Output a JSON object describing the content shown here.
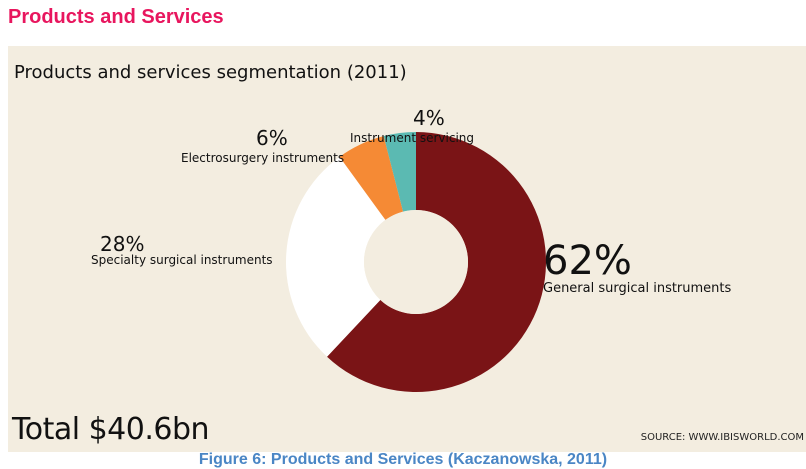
{
  "heading": "Products and Services",
  "panel": {
    "title": "Products and services segmentation",
    "year": "(2011)",
    "total": "Total $40.6bn",
    "source": "SOURCE: WWW.IBISWORLD.COM"
  },
  "caption": "Figure 6: Products and Services (Kaczanowska, 2011)",
  "chart_data": {
    "type": "pie",
    "title": "Products and services segmentation (2011)",
    "slices": [
      {
        "label": "General surgical instruments",
        "value": 62,
        "display": "62%",
        "color": "#7a1416"
      },
      {
        "label": "Specialty surgical instruments",
        "value": 28,
        "display": "28%",
        "color": "#ffffff"
      },
      {
        "label": "Electrosurgery instruments",
        "value": 6,
        "display": "6%",
        "color": "#f58a35"
      },
      {
        "label": "Instrument servicing",
        "value": 4,
        "display": "4%",
        "color": "#5bbab2"
      }
    ],
    "donut": true,
    "total": "Total $40.6bn"
  }
}
